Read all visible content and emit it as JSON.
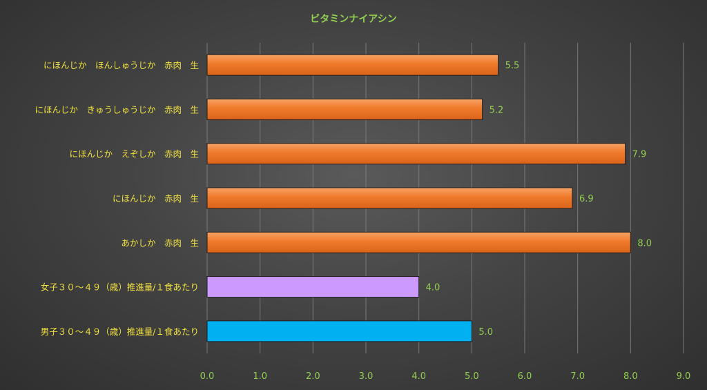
{
  "chart_data": {
    "type": "bar",
    "orientation": "horizontal",
    "title": "ビタミンナイアシン",
    "xlabel": "",
    "ylabel": "",
    "categories": [
      "にほんじか　ほんしゅうじか　赤肉　生",
      "にほんじか　きゅうしゅうじか　赤肉　生",
      "にほんじか　えぞしか　赤肉　生",
      "にほんじか　赤肉　生",
      "あかしか　赤肉　生",
      "女子３０～４９（歳）推進量/１食あたり",
      "男子３０～４９（歳）推進量/１食あたり"
    ],
    "values": [
      5.5,
      5.2,
      7.9,
      6.9,
      8.0,
      4.0,
      5.0
    ],
    "data_labels": [
      "5.5",
      "5.2",
      "7.9",
      "6.9",
      "8.0",
      "4.0",
      "5.0"
    ],
    "bar_colors": [
      "#f07a2a",
      "#f07a2a",
      "#f07a2a",
      "#f07a2a",
      "#f07a2a",
      "#cc99ff",
      "#00b0f0"
    ],
    "xlim": [
      0,
      9
    ],
    "xticks": [
      "0.0",
      "1.0",
      "2.0",
      "3.0",
      "4.0",
      "5.0",
      "6.0",
      "7.0",
      "8.0",
      "9.0"
    ],
    "grid": true,
    "legend": "none",
    "colors": {
      "title": "#92d050",
      "category_labels": "#f0e040",
      "tick_labels": "#92d050",
      "data_labels": "#92d050",
      "gridlines": "#7a7a7a"
    }
  }
}
